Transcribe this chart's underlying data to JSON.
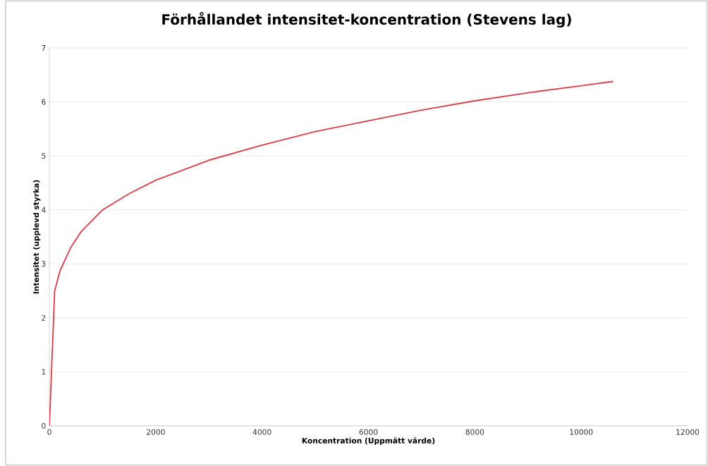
{
  "chart_data": {
    "type": "line",
    "title": "Förhållandet intensitet-koncentration (Stevens lag)",
    "xlabel": "Koncentration (Uppmätt värde)",
    "ylabel": "Intensitet (upplevd styrka)",
    "x": [
      0,
      100,
      200,
      400,
      600,
      1000,
      1500,
      2000,
      3000,
      4000,
      5000,
      6000,
      7000,
      8000,
      9000,
      10000,
      10600
    ],
    "series": [
      {
        "color": "#d9404c",
        "values": [
          0,
          2.5,
          2.87,
          3.3,
          3.6,
          4.0,
          4.3,
          4.55,
          4.92,
          5.2,
          5.45,
          5.65,
          5.85,
          6.02,
          6.17,
          6.3,
          6.38
        ]
      }
    ],
    "xlim": [
      0,
      12000
    ],
    "ylim": [
      0,
      7
    ],
    "xticks": [
      0,
      2000,
      4000,
      6000,
      8000,
      10000,
      12000
    ],
    "yticks": [
      0,
      1,
      2,
      3,
      4,
      5,
      6,
      7
    ],
    "grid": "y",
    "marker": "none",
    "line_style": "solid"
  }
}
